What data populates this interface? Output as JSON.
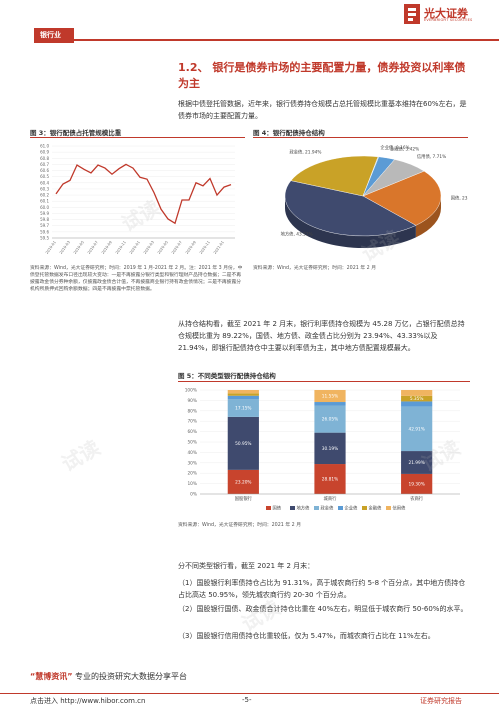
{
  "header": {
    "section_tag": "银行业",
    "logo_name": "光大证券",
    "logo_sub": "EVERBRIGHT SECURITIES"
  },
  "section_heading": "1.2、 银行是债券市场的主要配置力量，债券投资以利率债为主",
  "intro_paragraph": "根据中债登托管数据，近年来，银行债券持仓规模占总托管规模比重基本维持在60%左右，是债券市场的主要配置力量。",
  "fig3": {
    "title": "图 3：银行配债占托管规模比重",
    "source": "资料来源：Wind，光大证券研究所；时间：2019 年 1 月-2021 年 2 月。注：2021 年 3 月份，中债登托管数据发布口径出现较大变动：一是不再披露分银行类型和银行理财产品持仓数据；二是不再披露政金债分券种余额，仅披露政金债合计值，不再披露商业银行持有政金债情况；三是不再披露分机构所质押式回购余额数据；四是不再披露中票托管数据。"
  },
  "fig4": {
    "title": "图 4：银行配债持仓结构",
    "source": "资料来源：Wind，光大证券研究所；时间：2021 年 2 月"
  },
  "analysis_paragraph": "从持仓结构看，截至 2021 年 2 月末，银行利率债持仓规模为 45.28 万亿，占银行配债总持仓规模比重为 89.22%，国债、地方债、政金债占比分别为 23.94%、43.33%以及 21.94%，即银行配债持仓中主要以利率债为主，其中地方债配置规模最大。",
  "fig5": {
    "title": "图 5：不同类型银行配债持仓结构",
    "source": "资料来源：Wind，光大证券研究所；时间：2021 年 2 月"
  },
  "findings": {
    "lead": "分不同类型银行看，截至 2021 年 2 月末：",
    "item1": "（1）国股银行利率债持仓占比为 91.31%，高于城农商行约 5-8 个百分点，其中地方债持仓占比高达 50.95%，领先城农商行约 20-30 个百分点。",
    "item2": "（2）国股银行国债、政金债合计持仓比重在 40%左右，明显低于城农商行 50-60%的水平。",
    "item3": "（3）国股银行信用债持仓比重较低，仅为 5.47%，而城农商行占比在 11%左右。"
  },
  "footer": {
    "brand": "“慧博资讯”",
    "tagline": " 专业的投资研究大数据分享平台",
    "url": "点击进入 http://www.hibor.com.cn",
    "page": "-5-",
    "doc_type": "证券研究报告"
  },
  "watermark": "试读",
  "chart_data": [
    {
      "type": "line",
      "title": "图 3：银行配债占托管规模比重",
      "ylim": [
        59.5,
        61.0
      ],
      "yticks": [
        "59.5",
        "59.6",
        "59.7",
        "59.8",
        "59.9",
        "60.0",
        "60.1",
        "60.2",
        "60.3",
        "60.4",
        "60.5",
        "60.6",
        "60.7",
        "60.8",
        "60.9",
        "61.0"
      ],
      "xticks": [
        "2019-01",
        "2019-03",
        "2019-05",
        "2019-07",
        "2019-09",
        "2019-11",
        "2020-01",
        "2020-03",
        "2020-05",
        "2020-07",
        "2020-09",
        "2020-11",
        "2021-01"
      ],
      "series": [
        {
          "values": [
            60.22,
            60.38,
            60.44,
            60.69,
            60.62,
            60.56,
            60.69,
            60.64,
            60.54,
            60.63,
            60.7,
            60.64,
            60.49,
            60.46,
            60.24,
            59.97,
            59.81,
            59.74,
            60.12,
            60.12,
            60.4,
            60.35,
            60.47,
            60.2,
            60.33,
            60.37
          ]
        }
      ],
      "colors": {
        "line": "#c0392b"
      }
    },
    {
      "type": "pie",
      "title": "图 4：银行配债持仓结构",
      "labels": [
        "国债",
        "地方债",
        "政金债",
        "企业债",
        "金融债",
        "信用债"
      ],
      "values": [
        23.94,
        43.33,
        21.94,
        0.16,
        3.42,
        7.71
      ],
      "colors": [
        "#d9762b",
        "#3f4a6e",
        "#c9a227",
        "#7fb3d5",
        "#5b9bd5",
        "#b9b9b9"
      ]
    },
    {
      "type": "bar",
      "stacked": true,
      "title": "图 5：不同类型银行配债持仓结构",
      "categories": [
        "国股银行",
        "城商行",
        "农商行"
      ],
      "ylim": [
        0,
        100
      ],
      "yticks": [
        "0%",
        "10%",
        "20%",
        "30%",
        "40%",
        "50%",
        "60%",
        "70%",
        "80%",
        "90%",
        "100%"
      ],
      "series": [
        {
          "name": "国债",
          "values": [
            23.2,
            28.81,
            19.3
          ]
        },
        {
          "name": "地方债",
          "values": [
            50.95,
            30.19,
            21.99
          ]
        },
        {
          "name": "政金债",
          "values": [
            17.15,
            26.05,
            42.91
          ]
        },
        {
          "name": "企业债",
          "values": [
            3.18,
            3.39,
            4.82
          ]
        },
        {
          "name": "金融债",
          "values": [
            2.29,
            0,
            5.35
          ]
        },
        {
          "name": "信用债",
          "values": [
            3.23,
            11.55,
            5.63
          ]
        }
      ],
      "data_labels": [
        [
          "23.20%",
          "50.95%",
          "17.15%",
          "",
          "",
          ""
        ],
        [
          "28.81%",
          "30.19%",
          "26.05%",
          "",
          "",
          "11.55%"
        ],
        [
          "19.30%",
          "21.99%",
          "42.91%",
          "",
          "5.35%",
          ""
        ]
      ],
      "colors": [
        "#c8442d",
        "#3f4a6e",
        "#7fb3d5",
        "#5b9bd5",
        "#c9a227",
        "#f0b460"
      ]
    }
  ]
}
